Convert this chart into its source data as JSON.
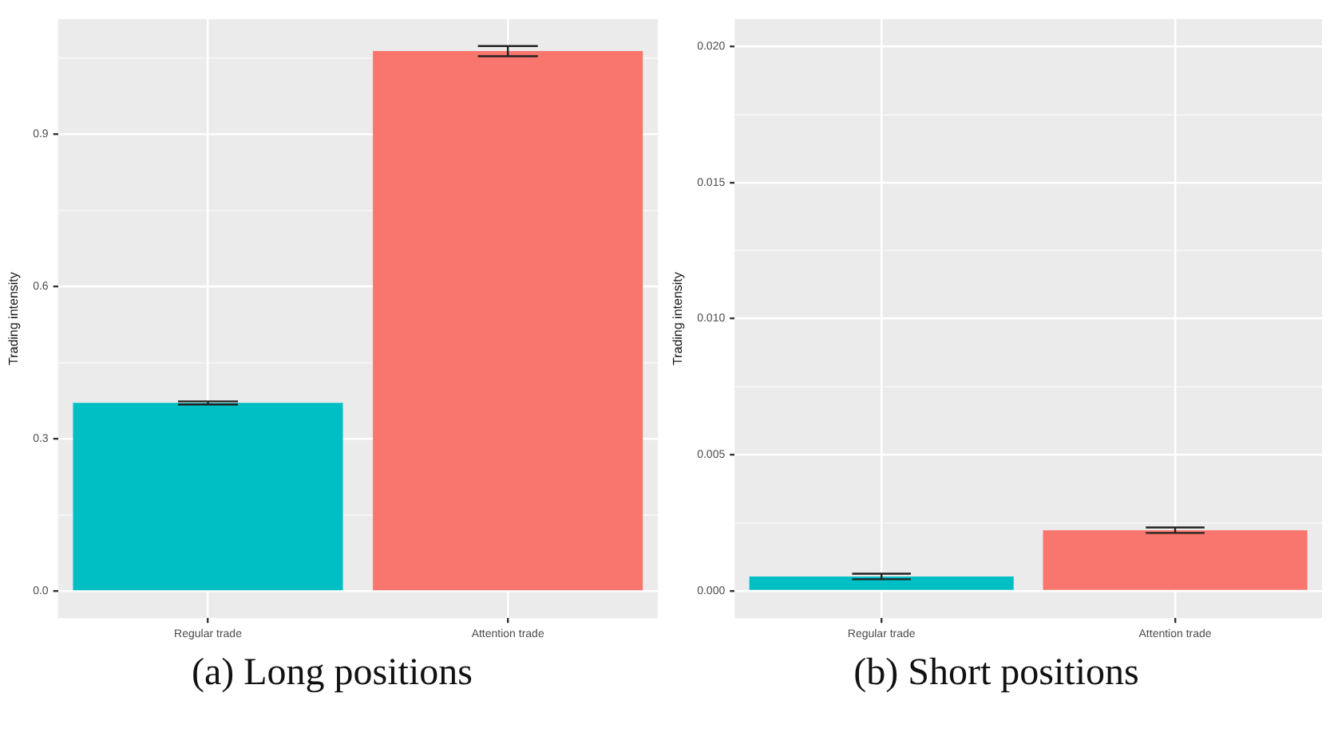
{
  "chart_data": [
    {
      "type": "bar",
      "title": "(a) Long positions",
      "ylabel": "Trading intensity",
      "categories": [
        "Regular trade",
        "Attention trade"
      ],
      "values": [
        0.371,
        1.064
      ],
      "colors": [
        "#00bfc4",
        "#f8766d"
      ],
      "errors": [
        0.003,
        0.01
      ],
      "ylim": [
        -0.053,
        1.127
      ],
      "yticks": [
        {
          "value": 0,
          "label": "0.0"
        },
        {
          "value": 0.15,
          "label": null
        },
        0.3,
        {
          "value": 0.45,
          "label": null
        },
        0.6,
        {
          "value": 0.75,
          "label": null
        },
        0.9,
        {
          "value": 1.05,
          "label": null
        }
      ],
      "grid": true
    },
    {
      "type": "bar",
      "title": "(b) Short positions",
      "ylabel": "Trading intensity",
      "categories": [
        "Regular trade",
        "Attention trade"
      ],
      "values": [
        0.00053,
        0.00223
      ],
      "colors": [
        "#00bfc4",
        "#f8766d"
      ],
      "errors": [
        0.0001,
        0.0001
      ],
      "ylim": [
        -0.001,
        0.021
      ],
      "yticks": [
        {
          "value": 0,
          "label": "0.000"
        },
        {
          "value": 0.0025,
          "label": null
        },
        {
          "value": 0.005,
          "label": "0.005"
        },
        {
          "value": 0.0075,
          "label": null
        },
        {
          "value": 0.01,
          "label": "0.010"
        },
        {
          "value": 0.0125,
          "label": null
        },
        {
          "value": 0.015,
          "label": "0.015"
        },
        {
          "value": 0.0175,
          "label": null
        },
        {
          "value": 0.02,
          "label": "0.020"
        }
      ],
      "grid": true
    }
  ]
}
